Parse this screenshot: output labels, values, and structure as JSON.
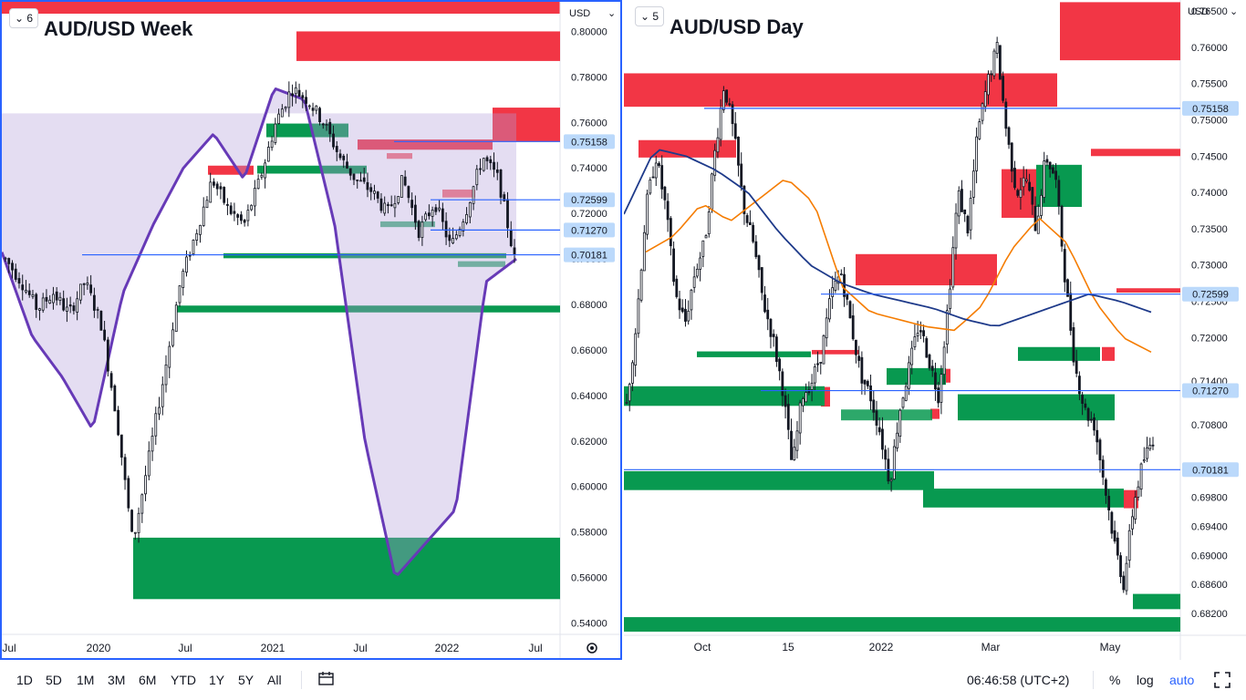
{
  "left_chart": {
    "title": "AUD/USD Week",
    "layout_button": "6",
    "currency": "USD",
    "y_ticks": [
      "0.80000",
      "0.78000",
      "0.76000",
      "0.74000",
      "0.72000",
      "0.70000",
      "0.68000",
      "0.66000",
      "0.64000",
      "0.62000",
      "0.60000",
      "0.58000",
      "0.56000",
      "0.54000"
    ],
    "x_ticks": [
      "Jul",
      "2020",
      "Jul",
      "2021",
      "Jul",
      "2022",
      "Jul"
    ],
    "price_badges": [
      "0.75158",
      "0.72599",
      "0.71270",
      "0.70181"
    ],
    "settings_icon": "gear-icon",
    "colors": {
      "supply": "#f23645",
      "demand": "#089950",
      "level_line": "#2962ff",
      "overlay_line": "#673ab7",
      "overlay_fill": "#b39ddb"
    }
  },
  "right_chart": {
    "title": "AUD/USD Day",
    "layout_button": "5",
    "currency": "USD",
    "y_ticks": [
      "0.76500",
      "0.76000",
      "0.75500",
      "0.75000",
      "0.74500",
      "0.74000",
      "0.73500",
      "0.73000",
      "0.72500",
      "0.72000",
      "0.71400",
      "0.70800",
      "0.69800",
      "0.69400",
      "0.69000",
      "0.68600",
      "0.68200"
    ],
    "x_ticks": [
      "Oct",
      "15",
      "2022",
      "Mar",
      "May"
    ],
    "price_badges": [
      "0.75158",
      "0.72599",
      "0.71270",
      "0.70181"
    ],
    "colors": {
      "ma_fast": "#f57c00",
      "ma_slow": "#1e3a8a"
    }
  },
  "chart_data": [
    {
      "type": "line",
      "title": "AUD/USD Week",
      "xlabel": "",
      "ylabel": "USD",
      "ylim": [
        0.535,
        0.813
      ],
      "x_labels": [
        "Jul",
        "2020",
        "Jul",
        "2021",
        "Jul",
        "2022",
        "Jul"
      ],
      "series": [
        {
          "x": [
            "2019-06",
            "2019-09",
            "2019-12",
            "2020-03",
            "2020-06",
            "2020-09",
            "2020-12",
            "2021-03",
            "2021-06",
            "2021-09",
            "2021-12",
            "2022-03",
            "2022-05"
          ],
          "values": [
            0.7,
            0.676,
            0.69,
            0.61,
            0.69,
            0.725,
            0.75,
            0.775,
            0.765,
            0.73,
            0.718,
            0.748,
            0.7
          ]
        }
      ],
      "levels": [
        0.75158,
        0.72599,
        0.7127,
        0.70181
      ]
    },
    {
      "type": "line",
      "title": "AUD/USD Day",
      "xlabel": "",
      "ylabel": "USD",
      "ylim": [
        0.679,
        0.7665
      ],
      "x_labels": [
        "Oct",
        "15",
        "2022",
        "Mar",
        "May"
      ],
      "series": [
        {
          "x": [
            "2021-09",
            "2021-10",
            "2021-11",
            "2021-12",
            "2022-01",
            "2022-02",
            "2022-03",
            "2022-04",
            "2022-05"
          ],
          "values": [
            0.726,
            0.749,
            0.722,
            0.712,
            0.718,
            0.712,
            0.745,
            0.74,
            0.708
          ]
        }
      ],
      "levels": [
        0.75158,
        0.72599,
        0.7127,
        0.70181
      ]
    }
  ],
  "bottom_bar": {
    "ranges": [
      "1D",
      "5D",
      "1M",
      "3M",
      "6M",
      "YTD",
      "1Y",
      "5Y",
      "All"
    ],
    "time": "06:46:58 (UTC+2)",
    "percent": "%",
    "log": "log",
    "auto": "auto"
  }
}
